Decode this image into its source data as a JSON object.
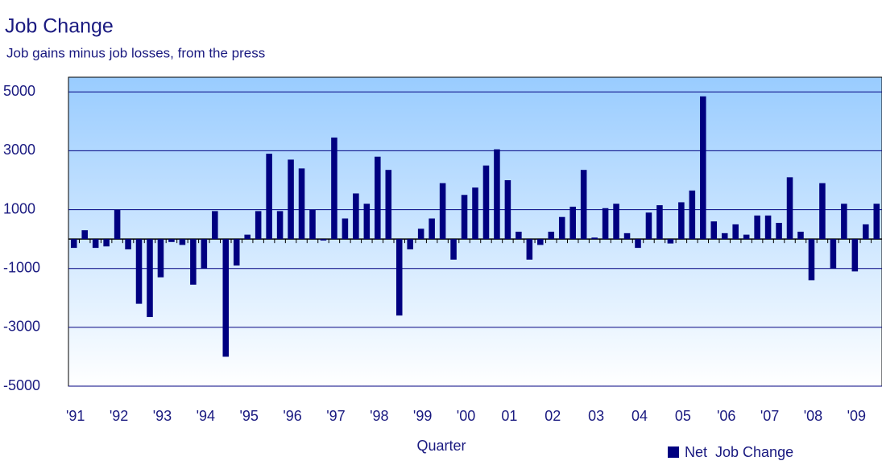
{
  "chart_data": {
    "type": "bar",
    "title": "Job Change",
    "subtitle": "Job gains minus job losses, from the press",
    "x_label": "Quarter",
    "categories": [
      "'91",
      null,
      null,
      null,
      "'92",
      null,
      null,
      null,
      "'93",
      null,
      null,
      null,
      "'94",
      null,
      null,
      null,
      "'95",
      null,
      null,
      null,
      "'96",
      null,
      null,
      null,
      "'97",
      null,
      null,
      null,
      "'98",
      null,
      null,
      null,
      "'99",
      null,
      null,
      null,
      "'00",
      null,
      null,
      null,
      "01",
      null,
      null,
      null,
      "02",
      null,
      null,
      null,
      "03",
      null,
      null,
      null,
      "04",
      null,
      null,
      null,
      "05",
      null,
      null,
      null,
      "'06",
      null,
      null,
      null,
      "'07",
      null,
      null,
      null,
      "'08",
      null,
      null,
      null,
      "'09",
      null,
      null
    ],
    "series": [
      {
        "name": "Net  Job Change",
        "color": "#000080",
        "values": [
          -300,
          300,
          -300,
          -250,
          1000,
          -350,
          -2200,
          -2650,
          -1300,
          -100,
          -200,
          -1550,
          -1000,
          950,
          -4000,
          -900,
          150,
          950,
          2900,
          950,
          2700,
          2400,
          1000,
          -50,
          3450,
          700,
          1550,
          1200,
          2800,
          2350,
          -2600,
          -350,
          350,
          700,
          1900,
          -700,
          1500,
          1750,
          2500,
          3050,
          2000,
          250,
          -700,
          -200,
          250,
          750,
          1100,
          2350,
          50,
          1050,
          1200,
          200,
          -300,
          900,
          1150,
          -150,
          1250,
          1650,
          4850,
          600,
          200,
          500,
          150,
          800,
          800,
          550,
          2100,
          250,
          -1400,
          1900,
          -1000,
          1200,
          -1100,
          500,
          1200
        ]
      }
    ],
    "ylim": [
      -5000,
      5500
    ],
    "yticks": [
      -5000,
      -3000,
      -1000,
      1000,
      3000,
      5000
    ],
    "grid": true
  }
}
